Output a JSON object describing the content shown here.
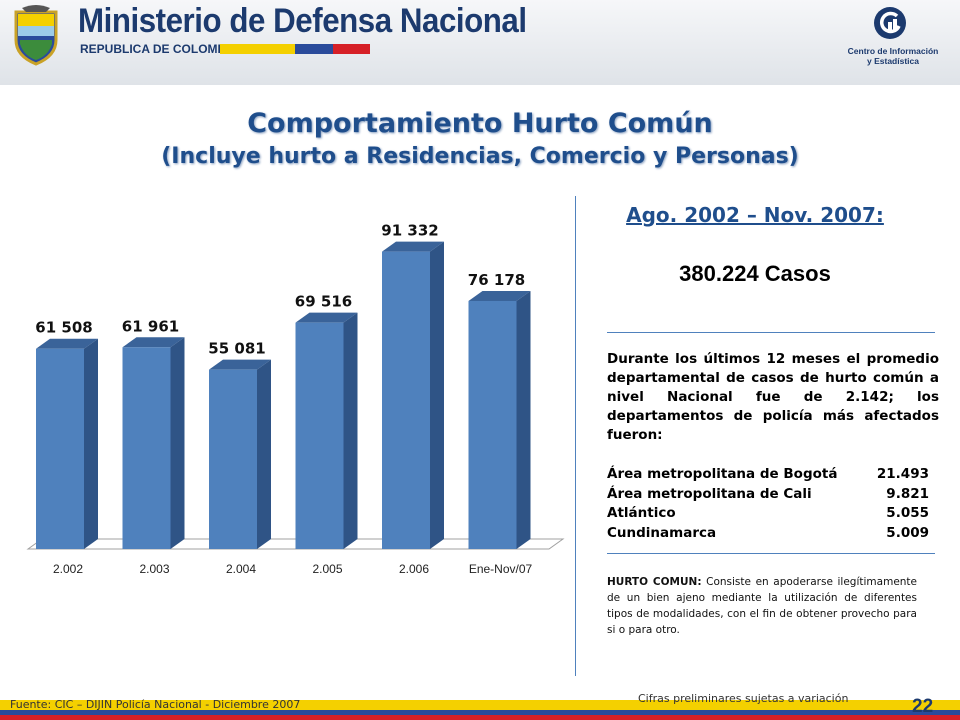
{
  "header": {
    "ministry": "Ministerio de Defensa Nacional",
    "republic": "REPUBLICA DE COLOMBIA",
    "cie_line1": "Centro de Información",
    "cie_line2": "y Estadística",
    "flag_colors": [
      "#f4d000",
      "#2a4b9b",
      "#d62027"
    ]
  },
  "title": {
    "line1": "Comportamiento Hurto Común",
    "line2": "(Incluye hurto a Residencias, Comercio y Personas)"
  },
  "summary": {
    "period": "Ago. 2002 – Nov. 2007:",
    "cases": "380.224 Casos",
    "description": "Durante los últimos 12 meses el promedio departamental de casos de hurto común a nivel Nacional fue de 2.142; los departamentos de policía más afectados fueron:",
    "departments": [
      {
        "name": "Área metropolitana de Bogotá",
        "value": "21.493"
      },
      {
        "name": "Área metropolitana de Cali",
        "value": "9.821"
      },
      {
        "name": "Atlántico",
        "value": "5.055"
      },
      {
        "name": "Cundinamarca",
        "value": "5.009"
      }
    ],
    "definition_term": "HURTO COMUN:",
    "definition_text": " Consiste en apoderarse ilegítimamente de un bien ajeno mediante la utilización de diferentes tipos de modalidades, con el fin de obtener provecho para si o para otro."
  },
  "footer": {
    "source": "Fuente: CIC – DIJIN Policía Nacional   - Diciembre 2007",
    "note": "Cifras preliminares sujetas a variación",
    "page": "22"
  },
  "chart_data": {
    "type": "bar",
    "categories": [
      "2.002",
      "2.003",
      "2.004",
      "2.005",
      "2.006",
      "Ene-Nov/07"
    ],
    "values": [
      61508,
      61961,
      55081,
      69516,
      91332,
      76178
    ],
    "value_labels": [
      "61 508",
      "61 961",
      "55 081",
      "69 516",
      "91 332",
      "76 178"
    ],
    "ylim": [
      0,
      100000
    ],
    "grid": false,
    "bar_color": "#4f81bd",
    "bar_side_color": "#2f5486",
    "bar_top_color": "#3a6399"
  }
}
